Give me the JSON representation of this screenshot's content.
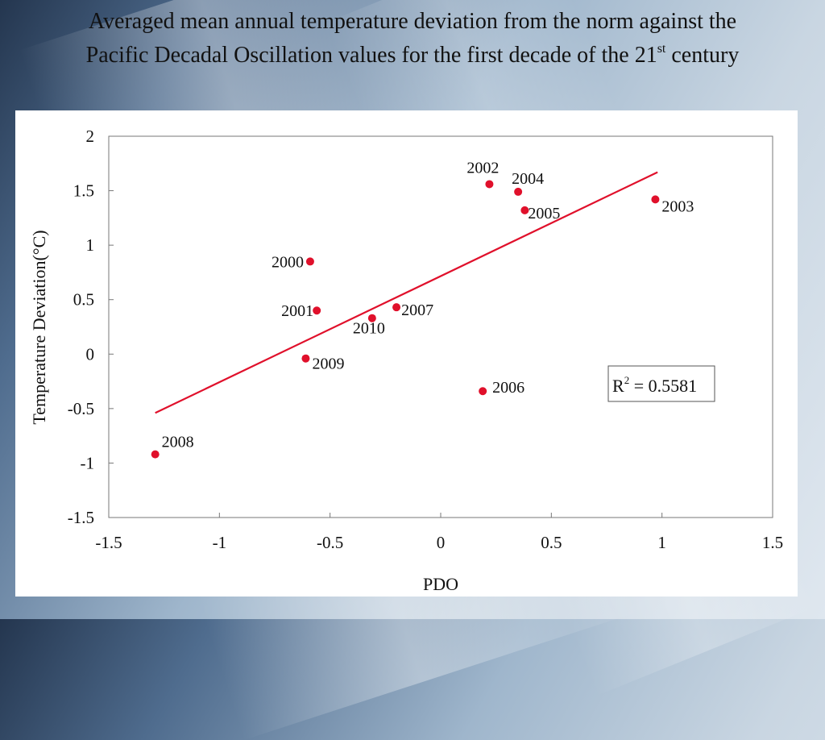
{
  "slide": {
    "title_line1": "Averaged mean annual temperature deviation from the norm against the",
    "title_line2_pre": "Pacific Decadal Oscillation values for the first decade of the 21",
    "title_sup": "st",
    "title_line2_post": " century"
  },
  "chart_data": {
    "type": "scatter",
    "title": "",
    "xlabel": "PDO",
    "ylabel": "Temperature Deviation(°C)",
    "xlim": [
      -1.5,
      1.5
    ],
    "ylim": [
      -1.5,
      2
    ],
    "x_ticks": [
      -1.5,
      -1,
      -0.5,
      0,
      0.5,
      1,
      1.5
    ],
    "x_tick_labels": [
      "-1.5",
      "-1",
      "-0.5",
      "0",
      "0.5",
      "1",
      "1.5"
    ],
    "y_ticks": [
      -1.5,
      -1,
      -0.5,
      0,
      0.5,
      1,
      1.5,
      2
    ],
    "y_tick_labels": [
      "-1.5",
      "-1",
      "-0.5",
      "0",
      "0.5",
      "1",
      "1.5",
      "2"
    ],
    "grid": false,
    "point_color": "#e0102b",
    "trendline_color": "#e0102b",
    "points": [
      {
        "label": "2000",
        "x": -0.59,
        "y": 0.85
      },
      {
        "label": "2001",
        "x": -0.56,
        "y": 0.4
      },
      {
        "label": "2002",
        "x": 0.22,
        "y": 1.56
      },
      {
        "label": "2003",
        "x": 0.97,
        "y": 1.42
      },
      {
        "label": "2004",
        "x": 0.35,
        "y": 1.49
      },
      {
        "label": "2005",
        "x": 0.38,
        "y": 1.32
      },
      {
        "label": "2006",
        "x": 0.19,
        "y": -0.34
      },
      {
        "label": "2007",
        "x": -0.2,
        "y": 0.43
      },
      {
        "label": "2008",
        "x": -1.29,
        "y": -0.92
      },
      {
        "label": "2009",
        "x": -0.61,
        "y": -0.04
      },
      {
        "label": "2010",
        "x": -0.31,
        "y": 0.33
      }
    ],
    "trendline": {
      "x": [
        -1.29,
        0.98
      ],
      "y": [
        -0.54,
        1.67
      ]
    },
    "r2_prefix": "R",
    "r2_sup": "2",
    "r2_value": " = 0.5581"
  }
}
